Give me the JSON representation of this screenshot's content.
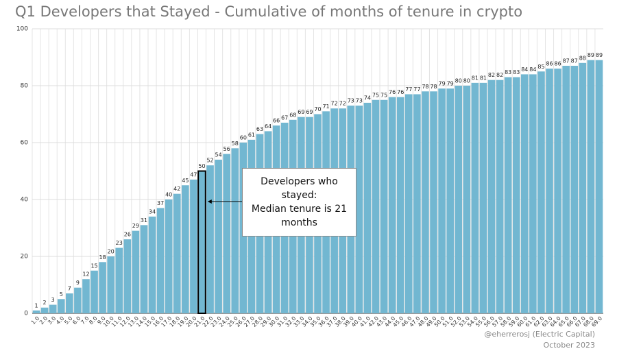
{
  "chart_data": {
    "type": "bar",
    "title": "Q1 Developers that Stayed - Cumulative of months of tenure in crypto",
    "categories": [
      "1.0",
      "2.0",
      "3.0",
      "4.0",
      "5.0",
      "6.0",
      "7.0",
      "8.0",
      "9.0",
      "10.0",
      "11.0",
      "12.0",
      "13.0",
      "14.0",
      "15.0",
      "16.0",
      "17.0",
      "18.0",
      "19.0",
      "20.0",
      "21.0",
      "22.0",
      "23.0",
      "24.0",
      "25.0",
      "26.0",
      "27.0",
      "28.0",
      "29.0",
      "30.0",
      "31.0",
      "32.0",
      "33.0",
      "34.0",
      "35.0",
      "36.0",
      "37.0",
      "38.0",
      "39.0",
      "40.0",
      "41.0",
      "42.0",
      "43.0",
      "44.0",
      "45.0",
      "46.0",
      "47.0",
      "48.0",
      "49.0",
      "50.0",
      "51.0",
      "52.0",
      "53.0",
      "54.0",
      "55.0",
      "56.0",
      "57.0",
      "58.0",
      "59.0",
      "60.0",
      "61.0",
      "62.0",
      "63.0",
      "64.0",
      "65.0",
      "66.0",
      "67.0",
      "68.0",
      "69.0"
    ],
    "values": [
      1,
      2,
      3,
      5,
      7,
      9,
      12,
      15,
      18,
      20,
      23,
      26,
      29,
      31,
      34,
      37,
      40,
      42,
      45,
      47,
      50,
      52,
      54,
      56,
      58,
      60,
      61,
      63,
      64,
      66,
      67,
      68,
      69,
      69,
      70,
      71,
      72,
      72,
      73,
      73,
      74,
      75,
      75,
      76,
      76,
      77,
      77,
      78,
      78,
      79,
      79,
      80,
      80,
      81,
      81,
      82,
      82,
      83,
      83,
      84,
      84,
      85,
      86,
      86,
      87,
      87,
      88,
      89,
      89
    ],
    "color": "#72b7d1",
    "highlight": "21.0",
    "ylim": [
      0,
      100
    ],
    "yticks": [
      0,
      20,
      40,
      60,
      80,
      100
    ],
    "grid": true,
    "annotation": [
      "Developers who",
      "stayed:",
      "Median tenure is 21",
      "months"
    ],
    "credit": "@eherrerosj (Electric Capital)",
    "date": "October 2023"
  }
}
